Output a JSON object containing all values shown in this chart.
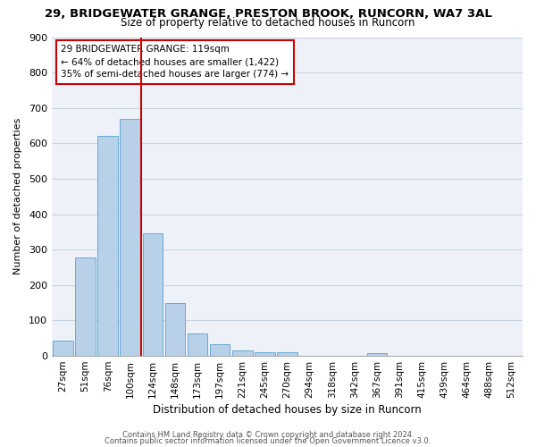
{
  "title": "29, BRIDGEWATER GRANGE, PRESTON BROOK, RUNCORN, WA7 3AL",
  "subtitle": "Size of property relative to detached houses in Runcorn",
  "xlabel": "Distribution of detached houses by size in Runcorn",
  "ylabel": "Number of detached properties",
  "bar_labels": [
    "27sqm",
    "51sqm",
    "76sqm",
    "100sqm",
    "124sqm",
    "148sqm",
    "173sqm",
    "197sqm",
    "221sqm",
    "245sqm",
    "270sqm",
    "294sqm",
    "318sqm",
    "342sqm",
    "367sqm",
    "391sqm",
    "415sqm",
    "439sqm",
    "464sqm",
    "488sqm",
    "512sqm"
  ],
  "bar_values": [
    44,
    279,
    621,
    669,
    347,
    148,
    64,
    32,
    16,
    11,
    10,
    0,
    0,
    0,
    8,
    0,
    0,
    0,
    0,
    0,
    0
  ],
  "bar_color": "#b8d0e8",
  "bar_edgecolor": "#6aaad4",
  "vline_color": "#cc0000",
  "annotation_text": "29 BRIDGEWATER GRANGE: 119sqm\n← 64% of detached houses are smaller (1,422)\n35% of semi-detached houses are larger (774) →",
  "annotation_box_edgecolor": "#cc0000",
  "ylim": [
    0,
    900
  ],
  "yticks": [
    0,
    100,
    200,
    300,
    400,
    500,
    600,
    700,
    800,
    900
  ],
  "background_color": "#eef2f8",
  "grid_color": "#c8d4e4",
  "footer1": "Contains HM Land Registry data © Crown copyright and database right 2024.",
  "footer2": "Contains public sector information licensed under the Open Government Licence v3.0."
}
